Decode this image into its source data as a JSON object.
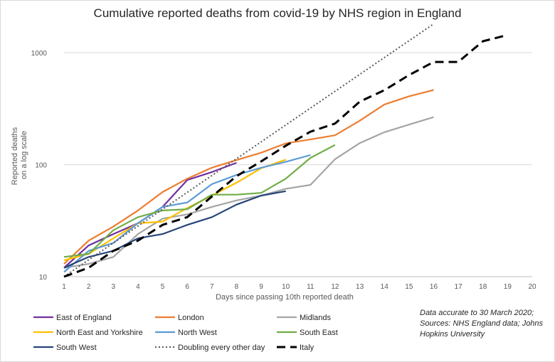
{
  "chart_data": {
    "type": "line",
    "title": "Cumulative reported deaths from covid-19 by NHS region in England",
    "xlabel": "Days since passing 10th reported death",
    "ylabel": "Reported deaths on a log scale",
    "ylabel_lines": [
      "Reported deaths",
      "on a log scale"
    ],
    "yscale": "log",
    "ylim": [
      10,
      1600
    ],
    "xlim": [
      1,
      20
    ],
    "x_ticks": [
      1,
      2,
      3,
      4,
      5,
      6,
      7,
      8,
      9,
      10,
      11,
      12,
      13,
      14,
      15,
      16,
      17,
      18,
      19,
      20
    ],
    "y_ticks": [
      10,
      100,
      1000
    ],
    "grid": "horizontal",
    "legend_position": "bottom",
    "note": [
      "Data accurate to 30 March 2020;",
      "Sources: NHS England data; Johns",
      "Hopkins University"
    ],
    "series": [
      {
        "name": "East of England",
        "color": "#7030a0",
        "dash": "solid",
        "x": [
          1,
          2,
          3,
          4,
          5,
          6,
          7,
          8
        ],
        "values": [
          12,
          19,
          24,
          30,
          42,
          73,
          86,
          104
        ]
      },
      {
        "name": "London",
        "color": "#ed7d31",
        "dash": "solid",
        "x": [
          1,
          2,
          3,
          4,
          5,
          6,
          7,
          8,
          9,
          10,
          11,
          12,
          13,
          14,
          15,
          16
        ],
        "values": [
          13,
          21,
          28,
          39,
          57,
          75,
          94,
          110,
          128,
          155,
          168,
          183,
          247,
          345,
          408,
          465
        ]
      },
      {
        "name": "Midlands",
        "color": "#a5a5a5",
        "dash": "solid",
        "x": [
          1,
          2,
          3,
          4,
          5,
          6,
          7,
          8,
          9,
          10,
          11,
          12,
          13,
          14,
          15,
          16
        ],
        "values": [
          12,
          13,
          15,
          24,
          33,
          36,
          42,
          48,
          53,
          61,
          66,
          112,
          156,
          195,
          228,
          266
        ]
      },
      {
        "name": "North East and Yorkshire",
        "color": "#ffc000",
        "dash": "solid",
        "x": [
          1,
          2,
          3,
          4,
          5,
          6,
          7,
          8,
          9,
          10
        ],
        "values": [
          14,
          16,
          22,
          30,
          31,
          41,
          53,
          69,
          93,
          111
        ]
      },
      {
        "name": "North West",
        "color": "#5b9bd5",
        "dash": "solid",
        "x": [
          1,
          2,
          3,
          4,
          5,
          6,
          7,
          8,
          9,
          10,
          11
        ],
        "values": [
          11,
          17,
          20,
          30,
          42,
          46,
          67,
          81,
          94,
          106,
          122
        ]
      },
      {
        "name": "South East",
        "color": "#70ad47",
        "dash": "solid",
        "x": [
          1,
          2,
          3,
          4,
          5,
          6,
          7,
          8,
          9,
          10,
          11,
          12
        ],
        "values": [
          15,
          16,
          26,
          34,
          39,
          40,
          54,
          54,
          56,
          75,
          115,
          150
        ]
      },
      {
        "name": "South West",
        "color": "#264478",
        "dash": "solid",
        "x": [
          1,
          2,
          3,
          4,
          5,
          6,
          7,
          8,
          9,
          10
        ],
        "values": [
          12,
          15,
          17,
          22,
          24,
          29,
          34,
          44,
          53,
          58
        ]
      },
      {
        "name": "Doubling every other day",
        "color": "#595959",
        "dash": "dotted",
        "x": [
          1,
          3,
          5,
          7,
          9,
          11,
          13,
          15,
          16
        ],
        "values": [
          10,
          20,
          40,
          80,
          160,
          320,
          640,
          1280,
          1810
        ]
      },
      {
        "name": "Italy",
        "color": "#000000",
        "dash": "dashed",
        "x": [
          1,
          2,
          3,
          4,
          5,
          6,
          7,
          8,
          9,
          10,
          11,
          12,
          13,
          14,
          15,
          16,
          17,
          18,
          19
        ],
        "values": [
          10,
          12,
          17,
          21,
          29,
          34,
          52,
          79,
          107,
          148,
          197,
          233,
          366,
          463,
          631,
          827,
          827,
          1266,
          1441
        ]
      }
    ]
  }
}
